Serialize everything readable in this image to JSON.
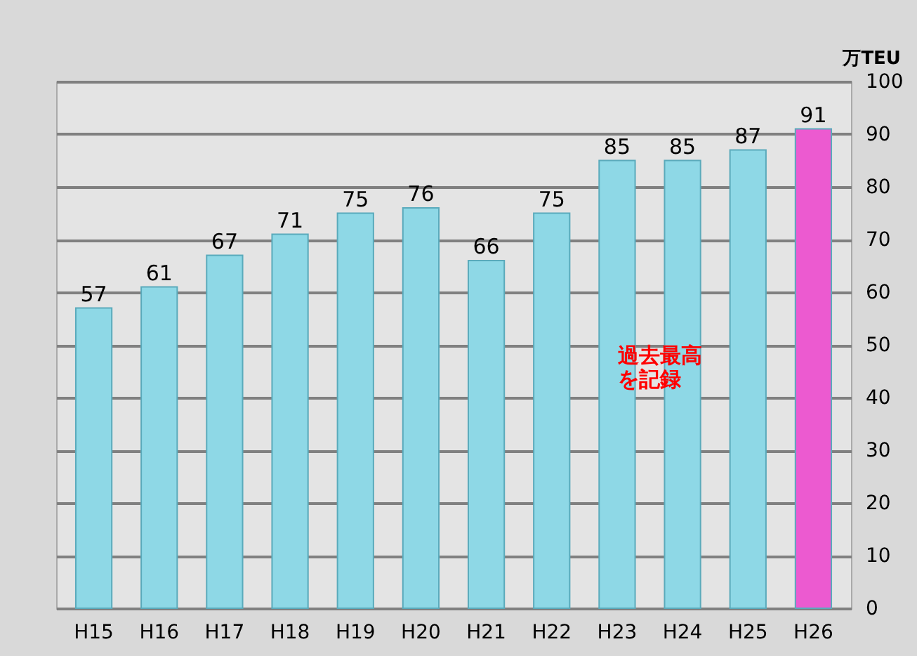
{
  "chart_data": {
    "type": "bar",
    "ylabel": "万TEU",
    "categories": [
      "H15",
      "H16",
      "H17",
      "H18",
      "H19",
      "H20",
      "H21",
      "H22",
      "H23",
      "H24",
      "H25",
      "H26"
    ],
    "values": [
      57,
      61,
      67,
      71,
      75,
      76,
      66,
      75,
      85,
      85,
      87,
      91
    ],
    "colors": [
      "#8ed8e6",
      "#8ed8e6",
      "#8ed8e6",
      "#8ed8e6",
      "#8ed8e6",
      "#8ed8e6",
      "#8ed8e6",
      "#8ed8e6",
      "#8ed8e6",
      "#8ed8e6",
      "#8ed8e6",
      "#ec5ad0"
    ],
    "ylim": [
      0,
      100
    ],
    "yticks": [
      0,
      10,
      20,
      30,
      40,
      50,
      60,
      70,
      80,
      90,
      100
    ],
    "grid": "y",
    "data_labels": true,
    "annotations": [
      "過去最高を記録"
    ]
  }
}
